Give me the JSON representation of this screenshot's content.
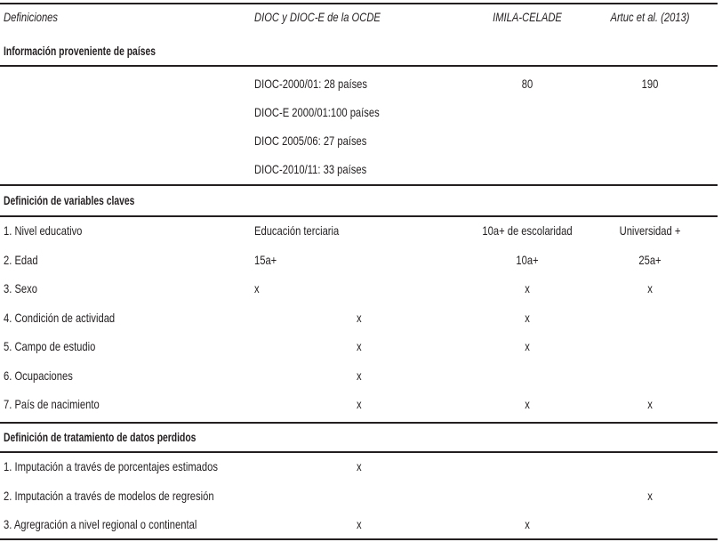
{
  "header": {
    "col1": "Definiciones",
    "col2": "DIOC y DIOC-E de la OCDE",
    "col3": "IMILA-CELADE",
    "col4": "Artuc et al. (2013)"
  },
  "sections": [
    {
      "title": "Información proveniente de países",
      "dioc": [
        "DIOC-2000/01: 28 países",
        "DIOC-E 2000/01:100 países",
        "DIOC 2005/06:  27 países",
        "DIOC-2010/11: 33 países"
      ],
      "imila": "80",
      "artuc": "190"
    },
    {
      "title": "Definición de variables claves",
      "rows": [
        {
          "label": "1. Nivel educativo",
          "dioc": "Educación terciaria",
          "imila": "10a+ de escolaridad",
          "artuc": "Universidad +"
        },
        {
          "label": "2. Edad",
          "dioc": "15a+",
          "imila": "10a+",
          "artuc": "25a+"
        },
        {
          "label": "3. Sexo",
          "dioc": "x",
          "imila": "x",
          "artuc": "x"
        },
        {
          "label": "4. Condición de actividad",
          "dioc": "x",
          "imila": "x",
          "artuc": ""
        },
        {
          "label": "5. Campo de estudio",
          "dioc": "x",
          "imila": "x",
          "artuc": ""
        },
        {
          "label": "6. Ocupaciones",
          "dioc": "x",
          "imila": "",
          "artuc": ""
        },
        {
          "label": "7. País de nacimiento",
          "dioc": "x",
          "imila": "x",
          "artuc": "x"
        }
      ]
    },
    {
      "title": "Definición de tratamiento de datos perdidos",
      "rows": [
        {
          "label": "1. Imputación a través de porcentajes estimados",
          "dioc": "x",
          "imila": "",
          "artuc": ""
        },
        {
          "label": "2. Imputación a través de modelos de regresión",
          "dioc": "",
          "imila": "",
          "artuc": "x"
        },
        {
          "label": "3. Agregración a nivel regional o continental",
          "dioc": "x",
          "imila": "x",
          "artuc": ""
        }
      ]
    }
  ]
}
